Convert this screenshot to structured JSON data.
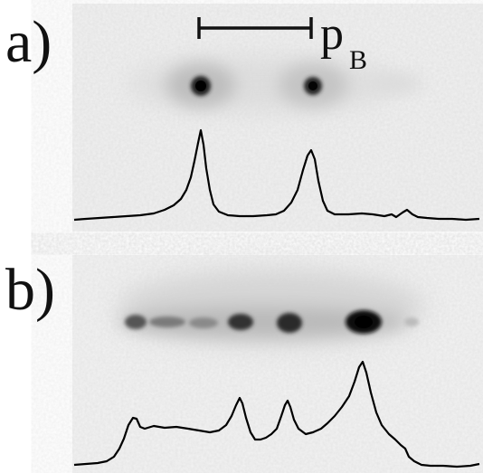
{
  "figure": {
    "panel_a": {
      "label": "a)"
    },
    "panel_b": {
      "label": "b)"
    },
    "scalebar": {
      "symbol": "p",
      "subscript": "B"
    }
  }
}
